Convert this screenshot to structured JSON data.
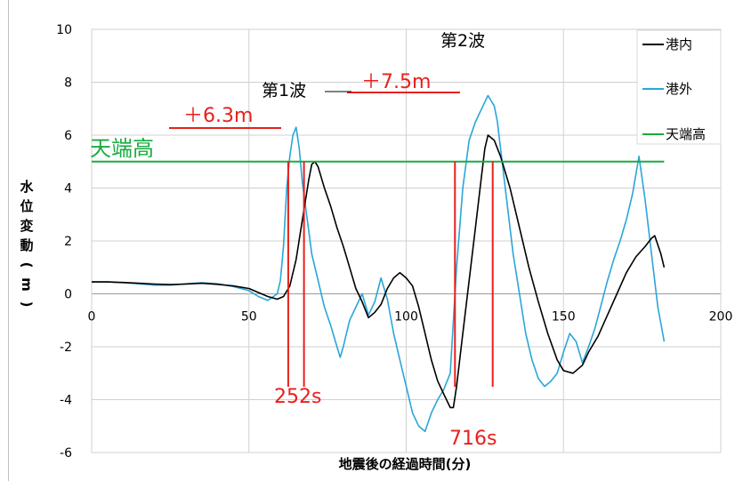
{
  "chart_data": {
    "type": "line",
    "title": "",
    "xlabel": "地震後の経過時間(分)",
    "ylabel": "水位変動(m)",
    "xlim": [
      0,
      200
    ],
    "ylim": [
      -6,
      10
    ],
    "x_ticks": [
      "0",
      "50",
      "100",
      "150",
      "200"
    ],
    "y_ticks": [
      "-6",
      "-4",
      "-2",
      "0",
      "2",
      "4",
      "6",
      "8",
      "10"
    ],
    "grid": true,
    "legend_position": "top-right",
    "legend": [
      "港内",
      "港外",
      "天端高"
    ],
    "series": [
      {
        "name": "港内",
        "color": "#000000",
        "points": [
          [
            0,
            0.45
          ],
          [
            5,
            0.45
          ],
          [
            10,
            0.43
          ],
          [
            15,
            0.4
          ],
          [
            20,
            0.37
          ],
          [
            25,
            0.35
          ],
          [
            30,
            0.37
          ],
          [
            35,
            0.4
          ],
          [
            40,
            0.36
          ],
          [
            45,
            0.3
          ],
          [
            50,
            0.2
          ],
          [
            53,
            0.05
          ],
          [
            56,
            -0.1
          ],
          [
            59,
            -0.2
          ],
          [
            61,
            -0.1
          ],
          [
            63,
            0.3
          ],
          [
            65,
            1.3
          ],
          [
            67,
            2.8
          ],
          [
            69,
            4.3
          ],
          [
            70,
            4.9
          ],
          [
            71,
            5.0
          ],
          [
            72,
            4.8
          ],
          [
            74,
            4.0
          ],
          [
            76,
            3.3
          ],
          [
            78,
            2.5
          ],
          [
            80,
            1.8
          ],
          [
            82,
            1.0
          ],
          [
            84,
            0.2
          ],
          [
            86,
            -0.3
          ],
          [
            88,
            -0.9
          ],
          [
            90,
            -0.7
          ],
          [
            92,
            -0.4
          ],
          [
            94,
            0.2
          ],
          [
            96,
            0.6
          ],
          [
            98,
            0.8
          ],
          [
            100,
            0.6
          ],
          [
            102,
            0.3
          ],
          [
            104,
            -0.5
          ],
          [
            106,
            -1.5
          ],
          [
            108,
            -2.5
          ],
          [
            110,
            -3.3
          ],
          [
            112,
            -3.8
          ],
          [
            114,
            -4.3
          ],
          [
            115,
            -4.3
          ],
          [
            116,
            -3.5
          ],
          [
            118,
            -1.5
          ],
          [
            120,
            0.5
          ],
          [
            122,
            2.5
          ],
          [
            124,
            4.5
          ],
          [
            125,
            5.5
          ],
          [
            126,
            6.0
          ],
          [
            128,
            5.8
          ],
          [
            130,
            5.2
          ],
          [
            133,
            4.0
          ],
          [
            136,
            2.5
          ],
          [
            139,
            1.0
          ],
          [
            142,
            -0.3
          ],
          [
            145,
            -1.5
          ],
          [
            148,
            -2.5
          ],
          [
            150,
            -2.9
          ],
          [
            153,
            -3.0
          ],
          [
            156,
            -2.7
          ],
          [
            158,
            -2.2
          ],
          [
            161,
            -1.6
          ],
          [
            164,
            -0.8
          ],
          [
            167,
            0.0
          ],
          [
            170,
            0.8
          ],
          [
            173,
            1.4
          ],
          [
            176,
            1.8
          ],
          [
            178,
            2.1
          ],
          [
            179,
            2.2
          ],
          [
            181,
            1.5
          ],
          [
            182,
            1.0
          ]
        ]
      },
      {
        "name": "港外",
        "color": "#2aa6d8",
        "points": [
          [
            0,
            0.45
          ],
          [
            5,
            0.45
          ],
          [
            10,
            0.42
          ],
          [
            15,
            0.38
          ],
          [
            20,
            0.33
          ],
          [
            25,
            0.33
          ],
          [
            30,
            0.38
          ],
          [
            35,
            0.42
          ],
          [
            40,
            0.38
          ],
          [
            45,
            0.28
          ],
          [
            50,
            0.12
          ],
          [
            53,
            -0.1
          ],
          [
            56,
            -0.25
          ],
          [
            59,
            0.0
          ],
          [
            60,
            0.5
          ],
          [
            61,
            1.8
          ],
          [
            62,
            4.0
          ],
          [
            63,
            5.2
          ],
          [
            64,
            6.0
          ],
          [
            65,
            6.3
          ],
          [
            66,
            5.5
          ],
          [
            67,
            4.2
          ],
          [
            68,
            3.3
          ],
          [
            70,
            1.5
          ],
          [
            72,
            0.5
          ],
          [
            74,
            -0.5
          ],
          [
            76,
            -1.2
          ],
          [
            78,
            -2.0
          ],
          [
            79,
            -2.4
          ],
          [
            80,
            -2.0
          ],
          [
            82,
            -1.0
          ],
          [
            84,
            -0.5
          ],
          [
            86,
            0.0
          ],
          [
            88,
            -0.8
          ],
          [
            90,
            -0.3
          ],
          [
            92,
            0.6
          ],
          [
            94,
            -0.2
          ],
          [
            96,
            -1.5
          ],
          [
            98,
            -2.5
          ],
          [
            100,
            -3.5
          ],
          [
            102,
            -4.5
          ],
          [
            104,
            -5.0
          ],
          [
            106,
            -5.2
          ],
          [
            108,
            -4.5
          ],
          [
            110,
            -4.0
          ],
          [
            112,
            -3.6
          ],
          [
            114,
            -3.0
          ],
          [
            116,
            1.0
          ],
          [
            118,
            4.0
          ],
          [
            120,
            5.8
          ],
          [
            122,
            6.5
          ],
          [
            124,
            7.0
          ],
          [
            126,
            7.5
          ],
          [
            128,
            7.1
          ],
          [
            129,
            6.5
          ],
          [
            130,
            5.5
          ],
          [
            132,
            3.5
          ],
          [
            134,
            1.5
          ],
          [
            136,
            0.0
          ],
          [
            138,
            -1.5
          ],
          [
            140,
            -2.5
          ],
          [
            142,
            -3.2
          ],
          [
            144,
            -3.5
          ],
          [
            146,
            -3.3
          ],
          [
            148,
            -3.0
          ],
          [
            150,
            -2.2
          ],
          [
            152,
            -1.5
          ],
          [
            154,
            -1.8
          ],
          [
            156,
            -2.6
          ],
          [
            158,
            -2.0
          ],
          [
            160,
            -1.3
          ],
          [
            162,
            -0.4
          ],
          [
            164,
            0.5
          ],
          [
            166,
            1.3
          ],
          [
            168,
            2.0
          ],
          [
            170,
            2.8
          ],
          [
            172,
            3.8
          ],
          [
            174,
            5.2
          ],
          [
            176,
            3.5
          ],
          [
            178,
            1.5
          ],
          [
            180,
            -0.5
          ],
          [
            182,
            -1.8
          ]
        ]
      },
      {
        "name": "天端高",
        "color": "#1aab40",
        "points": [
          [
            0,
            5.0
          ],
          [
            182,
            5.0
          ]
        ]
      }
    ],
    "annotations": {
      "wave1": "第1波",
      "wave2": "第2波",
      "rise1": "＋6.3m",
      "rise2": "＋7.5m",
      "crest_label": "天端高",
      "time1": "252s",
      "time2": "716s"
    },
    "marker_lines": [
      [
        62.5,
        67.5
      ],
      [
        115.5,
        127.5
      ]
    ]
  }
}
